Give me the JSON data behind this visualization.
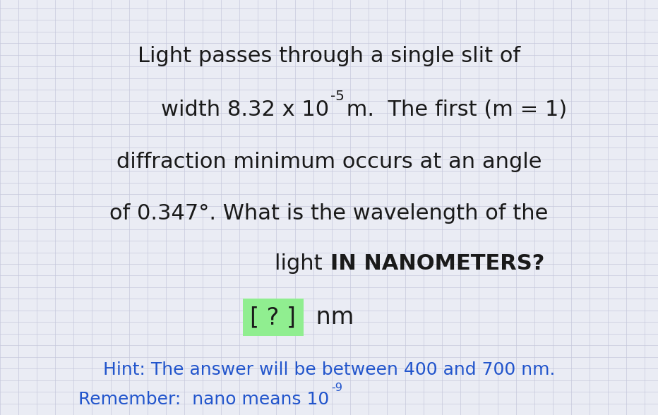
{
  "background_color": "#eaecf4",
  "text_color": "#1a1a1a",
  "hint_color": "#2255cc",
  "answer_box_bg": "#90ee90",
  "grid_line_color": "#c5c8dc",
  "main_fontsize": 22,
  "hint_fontsize": 18,
  "answer_fontsize": 24,
  "line1": "Light passes through a single slit of",
  "line2_pre": "width 8.32 x 10",
  "line2_sup": "-5",
  "line2_post": " m.  The first (m = 1)",
  "line3": "diffraction minimum occurs at an angle",
  "line4": "of 0.347°. What is the wavelength of the",
  "line5_normal": "light ",
  "line5_bold": "IN NANOMETERS?",
  "answer_text": "[ ? ]",
  "nm_text": " nm",
  "hint1": "Hint: The answer will be between 400 and 700 nm.",
  "hint2_pre": "Remember:  nano means 10",
  "hint2_sup": "-9"
}
